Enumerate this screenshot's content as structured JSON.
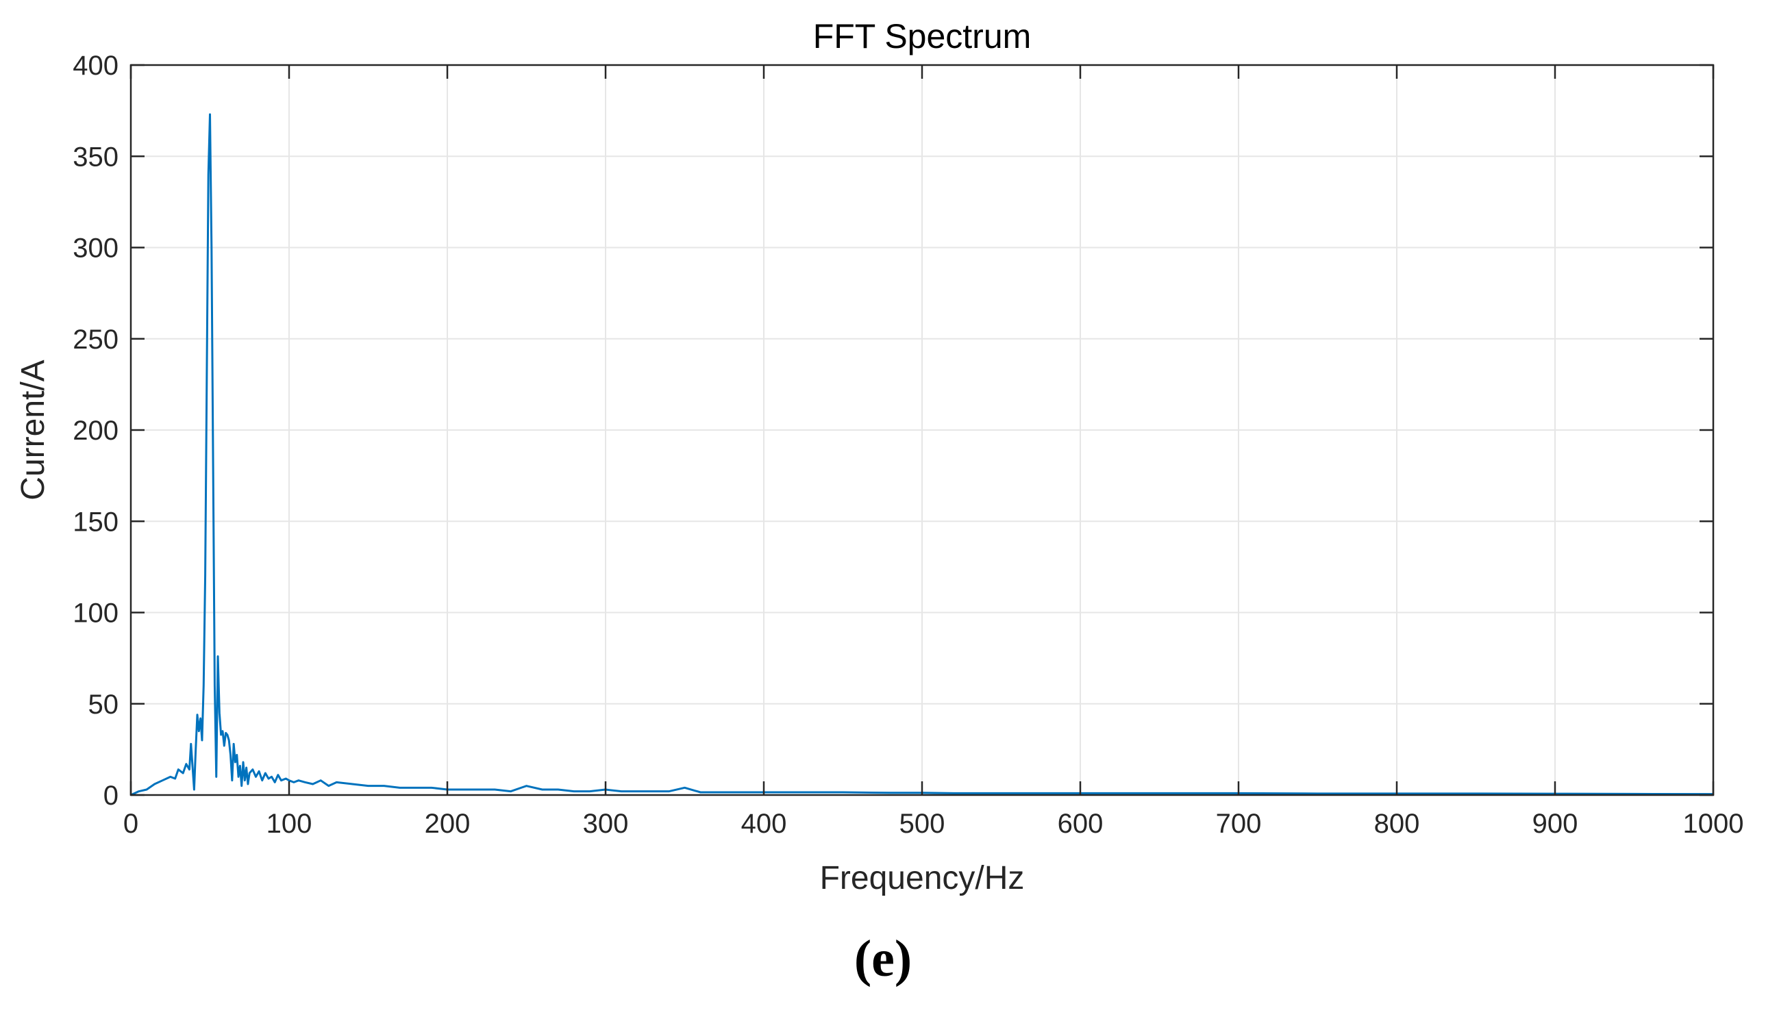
{
  "chart_data": {
    "type": "line",
    "title": "FFT Spectrum",
    "xlabel": "Frequency/Hz",
    "ylabel": "Current/A",
    "xlim": [
      0,
      1000
    ],
    "ylim": [
      0,
      400
    ],
    "xticks": [
      0,
      100,
      200,
      300,
      400,
      500,
      600,
      700,
      800,
      900,
      1000
    ],
    "yticks": [
      0,
      50,
      100,
      150,
      200,
      250,
      300,
      350,
      400
    ],
    "grid": true,
    "line_color": "#0072BD",
    "series": [
      {
        "x": [
          0,
          5,
          10,
          15,
          20,
          25,
          28,
          30,
          33,
          35,
          37,
          38,
          40,
          41,
          42,
          43,
          44,
          45,
          46,
          47,
          48,
          49,
          50,
          51,
          52,
          53,
          54,
          55,
          56,
          57,
          58,
          59,
          60,
          61,
          62,
          63,
          64,
          65,
          66,
          67,
          68,
          69,
          70,
          71,
          72,
          73,
          74,
          75,
          77,
          79,
          81,
          83,
          85,
          87,
          89,
          91,
          93,
          95,
          98,
          100,
          103,
          106,
          110,
          115,
          120,
          125,
          130,
          140,
          150,
          160,
          170,
          180,
          190,
          200,
          210,
          220,
          230,
          240,
          250,
          260,
          270,
          280,
          290,
          300,
          310,
          320,
          330,
          340,
          350,
          360,
          380,
          400,
          420,
          450,
          480,
          500,
          520,
          550,
          560,
          600,
          650,
          700,
          750,
          800,
          850,
          900,
          950,
          1000
        ],
        "y": [
          0,
          2,
          3,
          6,
          8,
          10,
          9,
          14,
          12,
          17,
          14,
          28,
          3,
          25,
          44,
          35,
          42,
          30,
          60,
          120,
          230,
          340,
          373,
          300,
          180,
          60,
          10,
          76,
          45,
          33,
          35,
          27,
          34,
          33,
          30,
          22,
          8,
          28,
          18,
          22,
          10,
          16,
          5,
          18,
          8,
          15,
          6,
          12,
          14,
          10,
          13,
          8,
          12,
          9,
          10,
          7,
          11,
          8,
          9,
          8,
          7,
          8,
          7,
          6,
          8,
          5,
          7,
          6,
          5,
          5,
          4,
          4,
          4,
          3,
          3,
          3,
          3,
          2,
          5,
          3,
          3,
          2,
          2,
          3,
          2,
          2,
          2,
          2,
          4,
          1.5,
          1.5,
          1.5,
          1.5,
          1.5,
          1.2,
          1.2,
          1,
          1,
          1,
          1,
          1,
          1,
          0.8,
          0.8,
          0.8,
          0.7,
          0.6,
          0.5
        ]
      }
    ]
  },
  "panel_label": "(e)"
}
